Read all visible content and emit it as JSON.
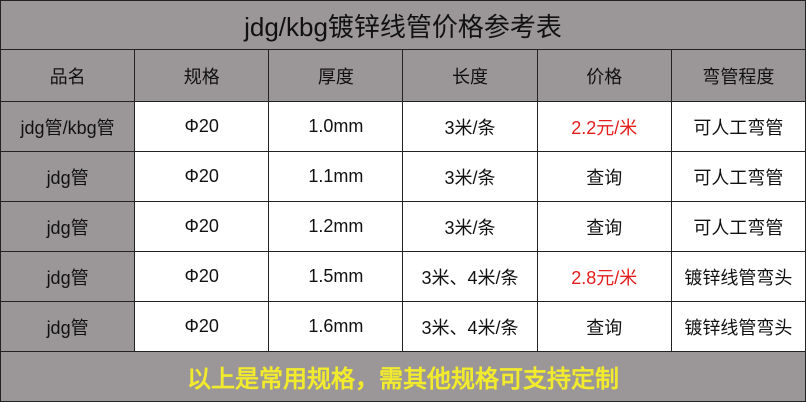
{
  "title": "jdg/kbg镀锌线管价格参考表",
  "headers": [
    "品名",
    "规格",
    "厚度",
    "长度",
    "价格",
    "弯管程度"
  ],
  "rows": [
    [
      "jdg管/kbg管",
      "Φ20",
      "1.0mm",
      "3米/条",
      "2.2元/米",
      "可人工弯管"
    ],
    [
      "jdg管",
      "Φ20",
      "1.1mm",
      "3米/条",
      "查询",
      "可人工弯管"
    ],
    [
      "jdg管",
      "Φ20",
      "1.2mm",
      "3米/条",
      "查询",
      "可人工弯管"
    ],
    [
      "jdg管",
      "Φ20",
      "1.5mm",
      "3米、4米/条",
      "2.8元/米",
      "镀锌线管弯头"
    ],
    [
      "jdg管",
      "Φ20",
      "1.6mm",
      "3米、4米/条",
      "查询",
      "镀锌线管弯头"
    ]
  ],
  "highlight_prices": [
    0,
    3
  ],
  "footer": "以上是常用规格，需其他规格可支持定制",
  "colors": {
    "background_gray": "#9b9697",
    "price_red": "#e41d1d",
    "footer_yellow": "#f2ea2c"
  }
}
